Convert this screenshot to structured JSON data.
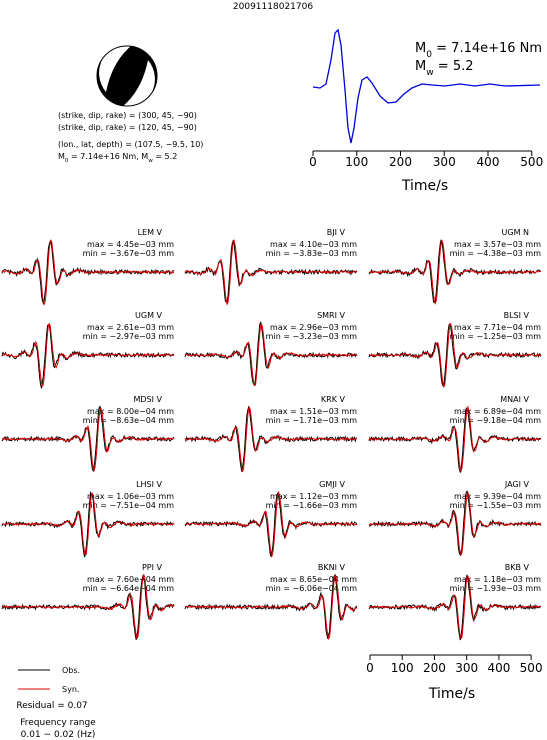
{
  "title": "20091118021706",
  "mechanism": {
    "lines": [
      "(strike, dip, rake) = (300, 45, −90)",
      "(strike, dip, rake) = (120, 45, −90)",
      "(lon., lat, depth) = (107.5, −9.5, 10)"
    ],
    "moment_line": [
      {
        "text": "M",
        "sub": false
      },
      {
        "text": "0",
        "sub": true
      },
      {
        "text": " = 7.14e+16 Nm, M",
        "sub": false
      },
      {
        "text": "w",
        "sub": true
      },
      {
        "text": " = 5.2",
        "sub": false
      }
    ]
  },
  "stf": {
    "m0": [
      {
        "text": "M",
        "sub": false
      },
      {
        "text": "0",
        "sub": true
      },
      {
        "text": " = 7.14e+16 Nm",
        "sub": false
      }
    ],
    "mw": [
      {
        "text": "M",
        "sub": false
      },
      {
        "text": "w",
        "sub": true
      },
      {
        "text": " = 5.2",
        "sub": false
      }
    ],
    "xlim": [
      0,
      512
    ],
    "xticks": [
      0,
      100,
      200,
      300,
      400,
      500
    ],
    "xlabel": "Time/s"
  },
  "stations": [
    {
      "name": "LEM V",
      "max": "max = 4.45e−03 mm",
      "min": "min = −3.67e−03 mm"
    },
    {
      "name": "BJI V",
      "max": "max = 4.10e−03 mm",
      "min": "min = −3.83e−03 mm"
    },
    {
      "name": "UGM N",
      "max": "max = 3.57e−03 mm",
      "min": "min = −4.38e−03 mm"
    },
    {
      "name": "UGM V",
      "max": "max = 2.61e−03 mm",
      "min": "min = −2.97e−03 mm"
    },
    {
      "name": "SMRI V",
      "max": "max = 2.96e−03 mm",
      "min": "min = −3.23e−03 mm"
    },
    {
      "name": "BLSI V",
      "max": "max = 7.71e−04 mm",
      "min": "min = −1.25e−03 mm"
    },
    {
      "name": "MDSI V",
      "max": "max = 8.00e−04 mm",
      "min": "min = −8.63e−04 mm"
    },
    {
      "name": "KRK V",
      "max": "max = 1.51e−03 mm",
      "min": "min = −1.71e−03 mm"
    },
    {
      "name": "MNAI V",
      "max": "max = 6.89e−04 mm",
      "min": "min = −9.18e−04 mm"
    },
    {
      "name": "LHSI V",
      "max": "max = 1.06e−03 mm",
      "min": "min = −7.51e−04 mm"
    },
    {
      "name": "GMJI V",
      "max": "max = 1.12e−03 mm",
      "min": "min = −1.66e−03 mm"
    },
    {
      "name": "JAGI V",
      "max": "max = 9.39e−04 mm",
      "min": "min = −1.55e−03 mm"
    },
    {
      "name": "PPI V",
      "max": "max = 7.60e−04 mm",
      "min": "min = −6.64e−04 mm"
    },
    {
      "name": "BKNI V",
      "max": "max = 8.65e−04 mm",
      "min": "min = −6.06e−04 mm"
    },
    {
      "name": "BKB V",
      "max": "max = 1.18e−03 mm",
      "min": "min = −1.93e−03 mm"
    }
  ],
  "time_axis": {
    "xlim": [
      0,
      512
    ],
    "xticks": [
      0,
      100,
      200,
      300,
      400,
      500
    ],
    "xlabel": "Time/s"
  },
  "legend": {
    "obs": "Obs.",
    "syn": "Syn."
  },
  "residual": "Residual = 0.07",
  "frequency": {
    "label": "Frequency range",
    "range": "0.01 − 0.02 (Hz)"
  }
}
